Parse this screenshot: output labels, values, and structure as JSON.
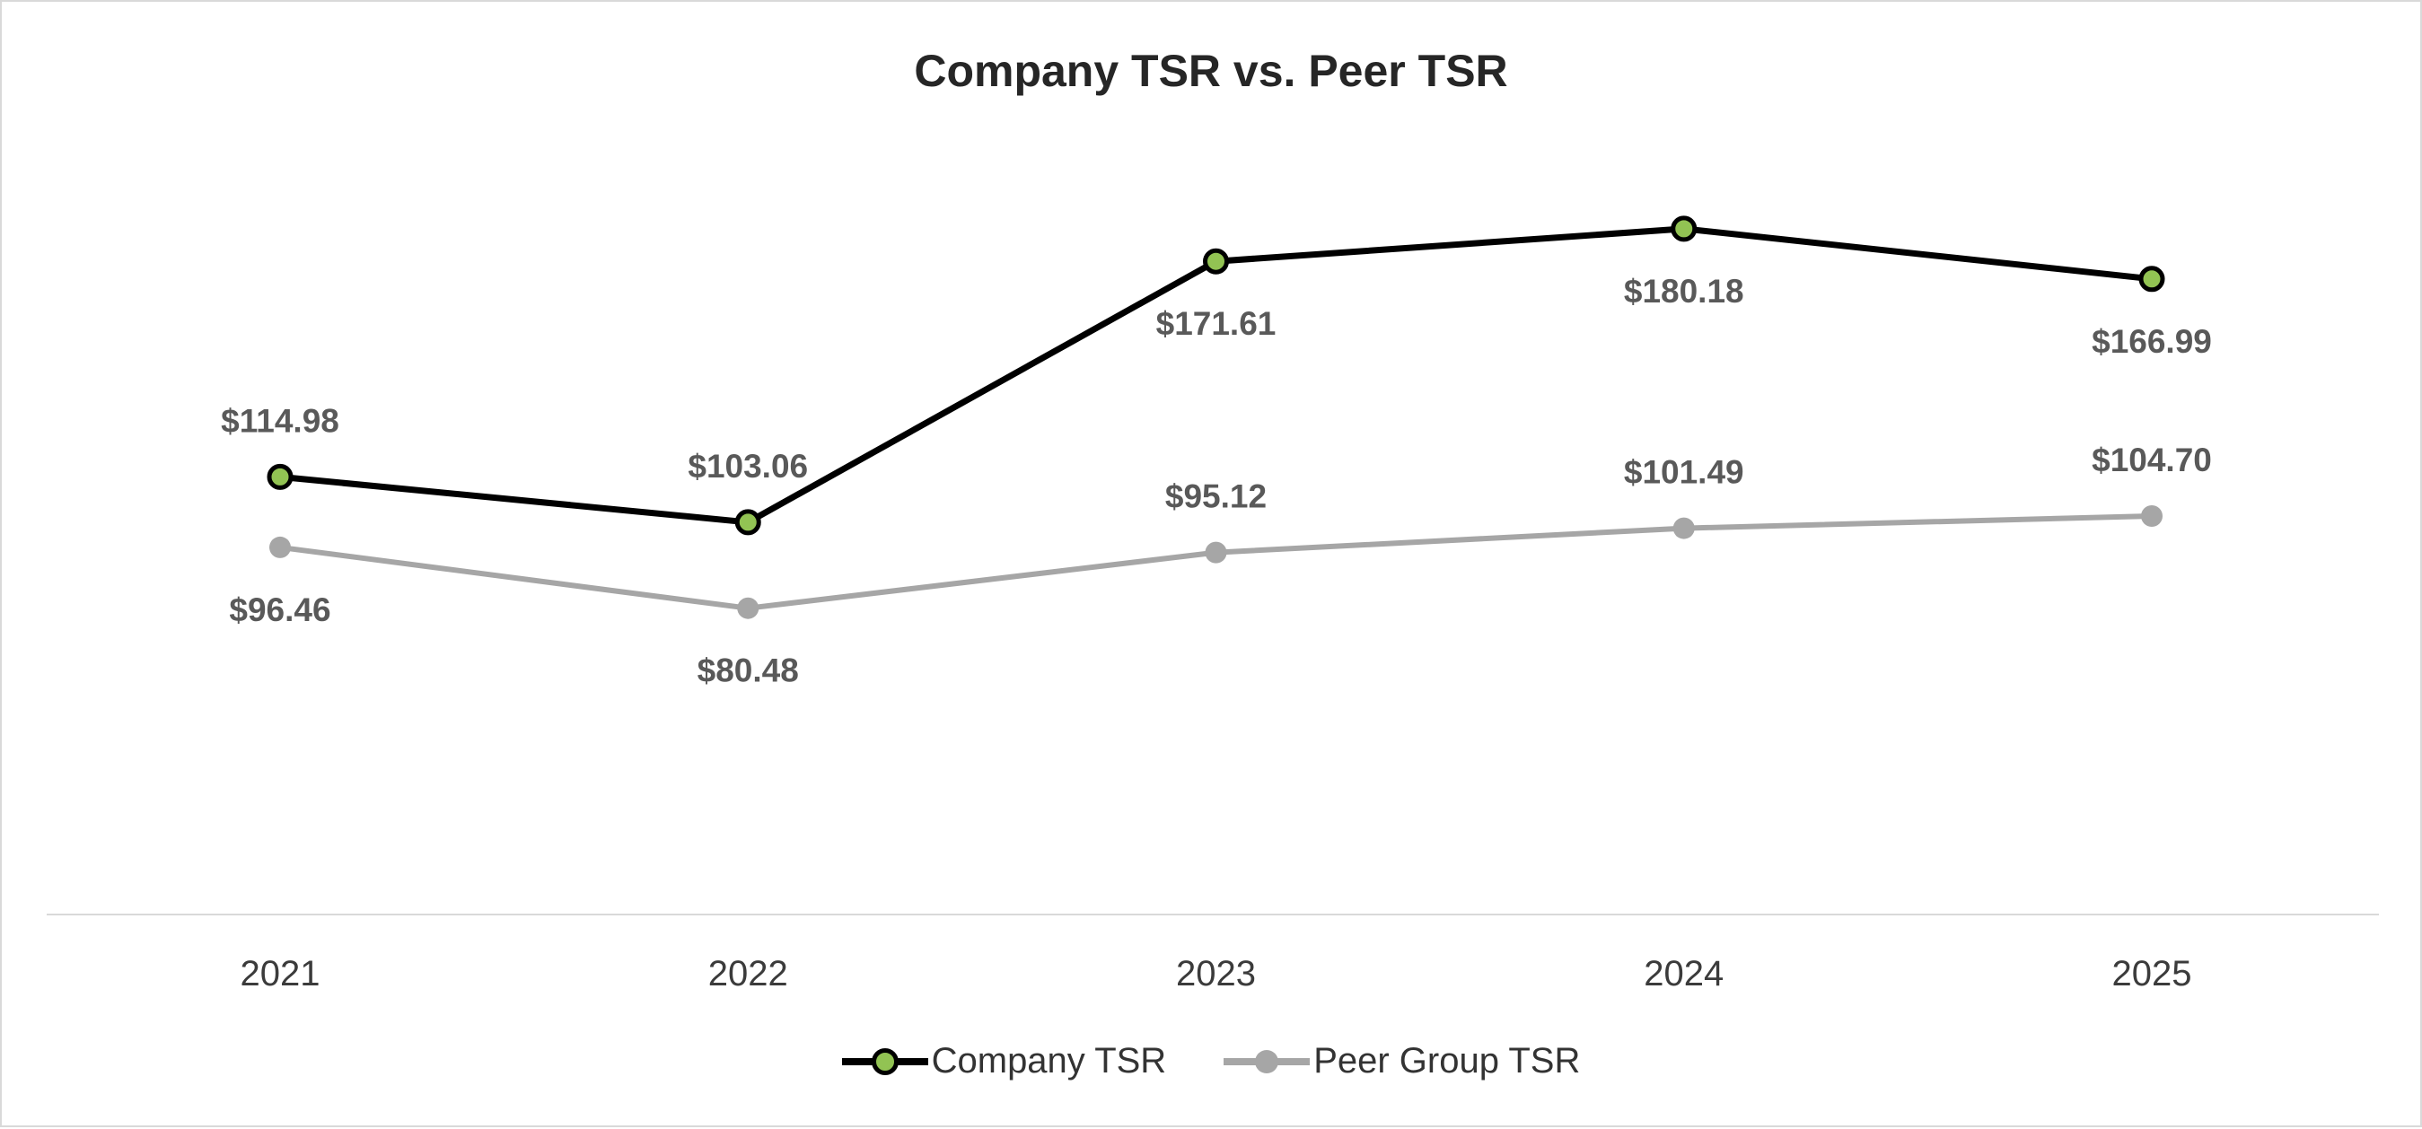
{
  "chart": {
    "colors": {
      "background": "#ffffff",
      "border": "#d9d9d9",
      "title_text": "#262626",
      "axis_line": "#d9d9d9",
      "axis_text": "#3b3b3b",
      "label_text": "#595959",
      "legend_text": "#333333",
      "company_line": "#000000",
      "company_marker_fill": "#92c353",
      "company_marker_stroke": "#000000",
      "peer_line": "#a6a6a6",
      "peer_marker_fill": "#a6a6a6"
    }
  },
  "chart_data": {
    "type": "line",
    "title": "Company TSR vs. Peer TSR",
    "categories": [
      "2021",
      "2022",
      "2023",
      "2024",
      "2025"
    ],
    "series": [
      {
        "name": "Company TSR",
        "values": [
          114.98,
          103.06,
          171.61,
          180.18,
          166.99
        ],
        "labels": [
          "$114.98",
          "$103.06",
          "$171.61",
          "$180.18",
          "$166.99"
        ],
        "label_placement": [
          "above",
          "above",
          "below",
          "below",
          "below"
        ]
      },
      {
        "name": "Peer Group TSR",
        "values": [
          96.46,
          80.48,
          95.12,
          101.49,
          104.7
        ],
        "labels": [
          "$96.46",
          "$80.48",
          "$95.12",
          "$101.49",
          "$104.70"
        ],
        "label_placement": [
          "below",
          "below",
          "above",
          "above",
          "above"
        ]
      }
    ],
    "xlabel": "",
    "ylabel": "",
    "ylim": [
      0,
      220
    ],
    "grid": false,
    "legend_position": "bottom"
  }
}
